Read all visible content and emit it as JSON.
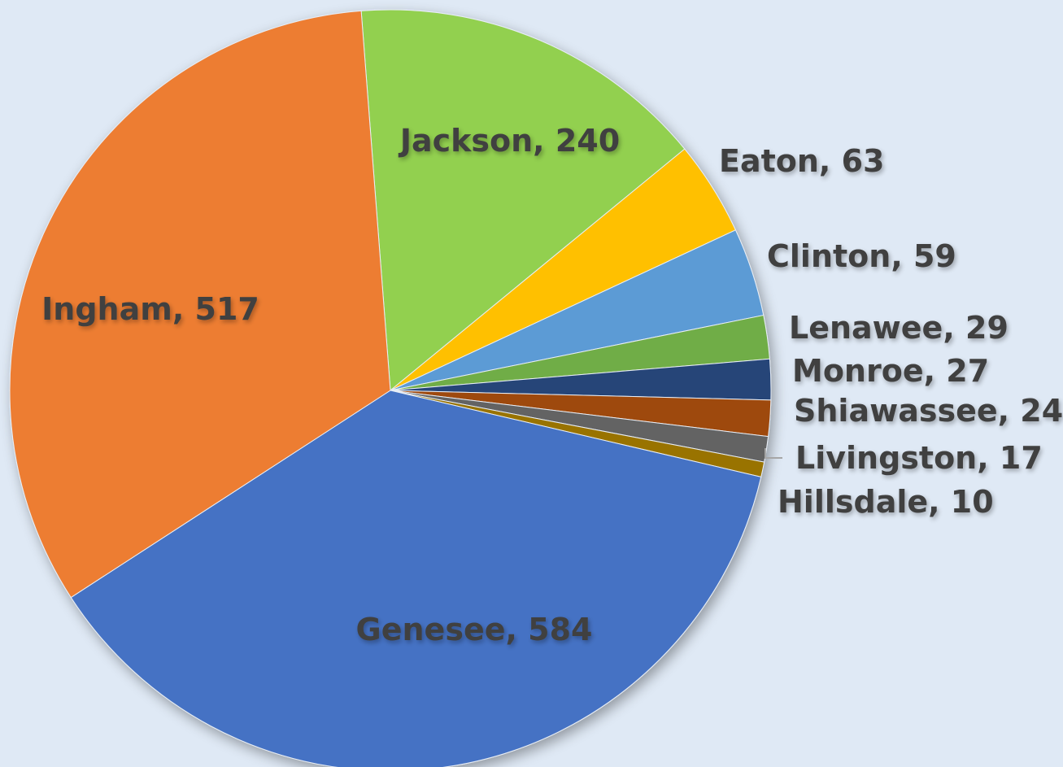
{
  "background": "#dfe9f5",
  "chart_data": {
    "type": "pie",
    "title": "",
    "start_angle_deg": 90,
    "direction": "clockwise",
    "slices": [
      {
        "label": "Jackson, 240",
        "name": "Jackson",
        "value": 240,
        "color": "#92d050"
      },
      {
        "label": "Eaton, 63",
        "name": "Eaton",
        "value": 63,
        "color": "#ffc000"
      },
      {
        "label": "Clinton, 59",
        "name": "Clinton",
        "value": 59,
        "color": "#5b9bd5"
      },
      {
        "label": "Lenawee, 29",
        "name": "Lenawee",
        "value": 29,
        "color": "#70ad47"
      },
      {
        "label": "Monroe, 27",
        "name": "Monroe",
        "value": 27,
        "color": "#264478"
      },
      {
        "label": "Shiawassee, 24",
        "name": "Shiawassee",
        "value": 24,
        "color": "#9e480e"
      },
      {
        "label": "Livingston, 17",
        "name": "Livingston",
        "value": 17,
        "color": "#636363"
      },
      {
        "label": "Hillsdale, 10",
        "name": "Hillsdale",
        "value": 10,
        "color": "#997300"
      },
      {
        "label": "Genesee, 584",
        "name": "Genesee",
        "value": 584,
        "color": "#4472c4"
      },
      {
        "label": "Ingham, 517",
        "name": "Ingham",
        "value": 517,
        "color": "#ed7d31"
      }
    ],
    "legend": "none"
  }
}
